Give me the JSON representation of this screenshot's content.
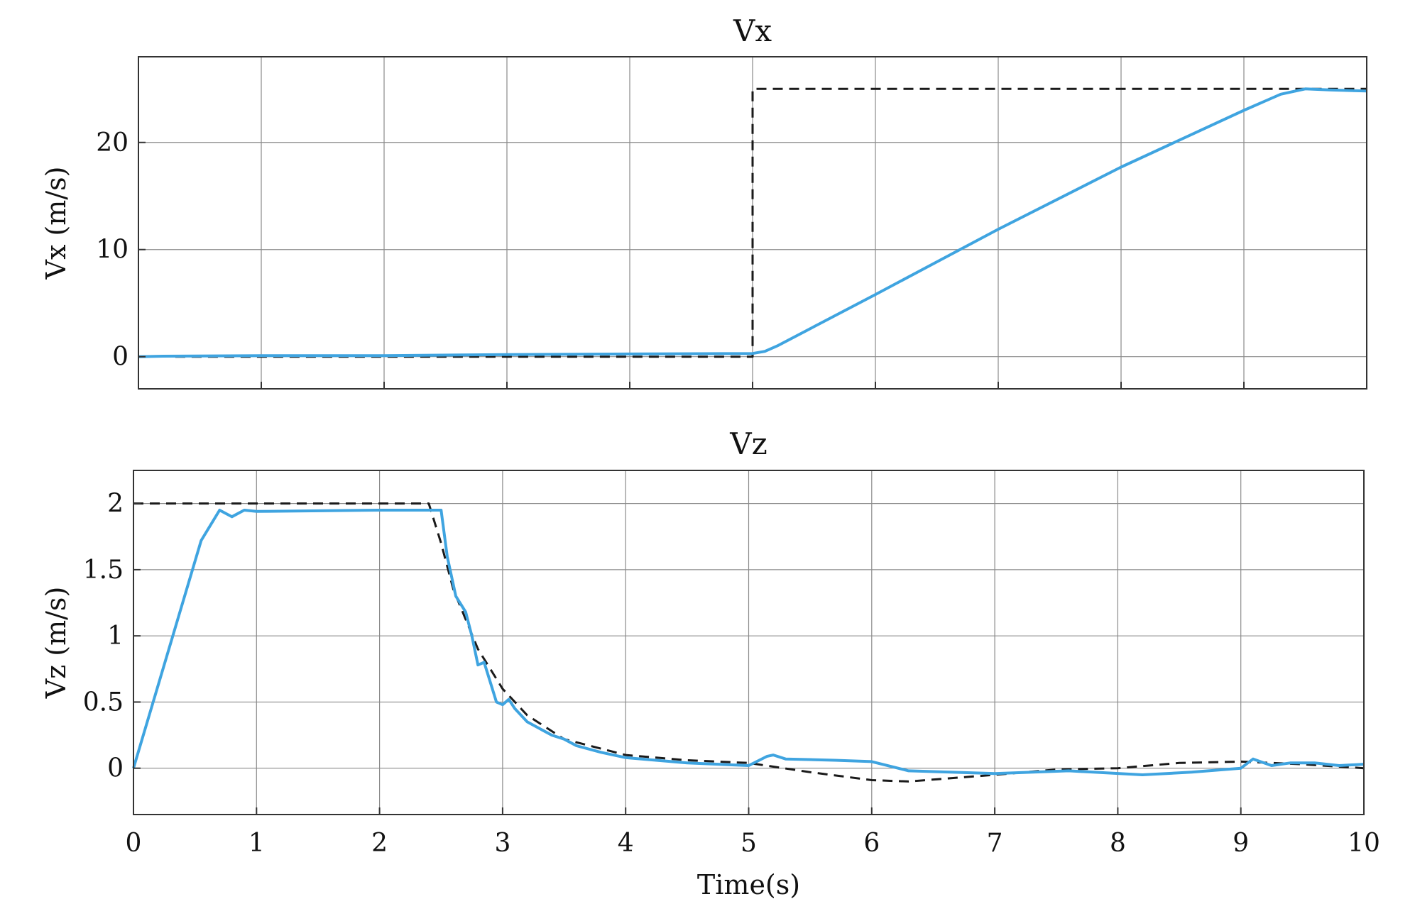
{
  "chart_data": [
    {
      "type": "line",
      "title": "Vx",
      "xlabel": "",
      "ylabel": "Vx (m/s)",
      "xlim": [
        0,
        10
      ],
      "ylim": [
        -3,
        28
      ],
      "xticks": [
        0,
        1,
        2,
        3,
        4,
        5,
        6,
        7,
        8,
        9,
        10
      ],
      "yticks": [
        0,
        10,
        20
      ],
      "x_tick_labels_visible": false,
      "grid": true,
      "series": [
        {
          "style": "dashed",
          "color": "#1a1a1a",
          "x": [
            0.3,
            5.0,
            5.0,
            10.0
          ],
          "y": [
            0,
            0,
            25,
            25
          ]
        },
        {
          "style": "solid",
          "color": "#3fa4e0",
          "x": [
            0,
            0.2,
            1,
            2,
            3,
            4,
            5.0,
            5.1,
            5.2,
            5.5,
            6,
            7,
            8,
            9,
            9.3,
            9.5,
            9.7,
            10
          ],
          "y": [
            0,
            0.05,
            0.1,
            0.1,
            0.2,
            0.25,
            0.3,
            0.5,
            1.0,
            2.8,
            5.8,
            11.9,
            17.7,
            23.0,
            24.5,
            25.0,
            24.9,
            24.8
          ]
        }
      ]
    },
    {
      "type": "line",
      "title": "Vz",
      "xlabel": "Time(s)",
      "ylabel": "Vz (m/s)",
      "xlim": [
        0,
        10
      ],
      "ylim": [
        -0.35,
        2.25
      ],
      "xticks": [
        0,
        1,
        2,
        3,
        4,
        5,
        6,
        7,
        8,
        9,
        10
      ],
      "yticks": [
        0,
        0.5,
        1,
        1.5,
        2
      ],
      "ytick_labels": [
        "0",
        "0.5",
        "1",
        "1.5",
        "2"
      ],
      "x_tick_labels_visible": true,
      "grid": true,
      "series": [
        {
          "style": "dashed",
          "color": "#1a1a1a",
          "x": [
            0,
            2.4,
            2.5,
            2.6,
            2.8,
            3.0,
            3.2,
            3.5,
            4.0,
            4.5,
            5.0,
            5.5,
            6.0,
            6.3,
            7.0,
            7.5,
            8.0,
            8.5,
            9.0,
            9.5,
            10.0
          ],
          "y": [
            2.0,
            2.0,
            1.7,
            1.35,
            0.9,
            0.6,
            0.4,
            0.22,
            0.1,
            0.06,
            0.04,
            -0.03,
            -0.09,
            -0.1,
            -0.05,
            -0.01,
            0.0,
            0.04,
            0.05,
            0.03,
            0.0
          ]
        },
        {
          "style": "solid",
          "color": "#3fa4e0",
          "x": [
            0,
            0.55,
            0.7,
            0.8,
            0.9,
            1.0,
            2.0,
            2.5,
            2.55,
            2.62,
            2.7,
            2.75,
            2.8,
            2.85,
            2.9,
            2.95,
            3.0,
            3.05,
            3.1,
            3.2,
            3.3,
            3.4,
            3.5,
            3.6,
            3.8,
            4.0,
            4.5,
            5.0,
            5.15,
            5.2,
            5.3,
            5.7,
            6.0,
            6.3,
            7.0,
            7.6,
            8.2,
            8.6,
            9.0,
            9.1,
            9.25,
            9.4,
            9.6,
            9.8,
            10.0
          ],
          "y": [
            0,
            1.72,
            1.95,
            1.9,
            1.95,
            1.94,
            1.95,
            1.95,
            1.6,
            1.3,
            1.18,
            1.0,
            0.78,
            0.8,
            0.65,
            0.5,
            0.48,
            0.52,
            0.45,
            0.35,
            0.3,
            0.25,
            0.22,
            0.17,
            0.12,
            0.08,
            0.04,
            0.02,
            0.09,
            0.1,
            0.07,
            0.06,
            0.05,
            -0.02,
            -0.04,
            -0.02,
            -0.05,
            -0.03,
            0.0,
            0.07,
            0.02,
            0.04,
            0.04,
            0.02,
            0.03
          ]
        }
      ]
    }
  ]
}
